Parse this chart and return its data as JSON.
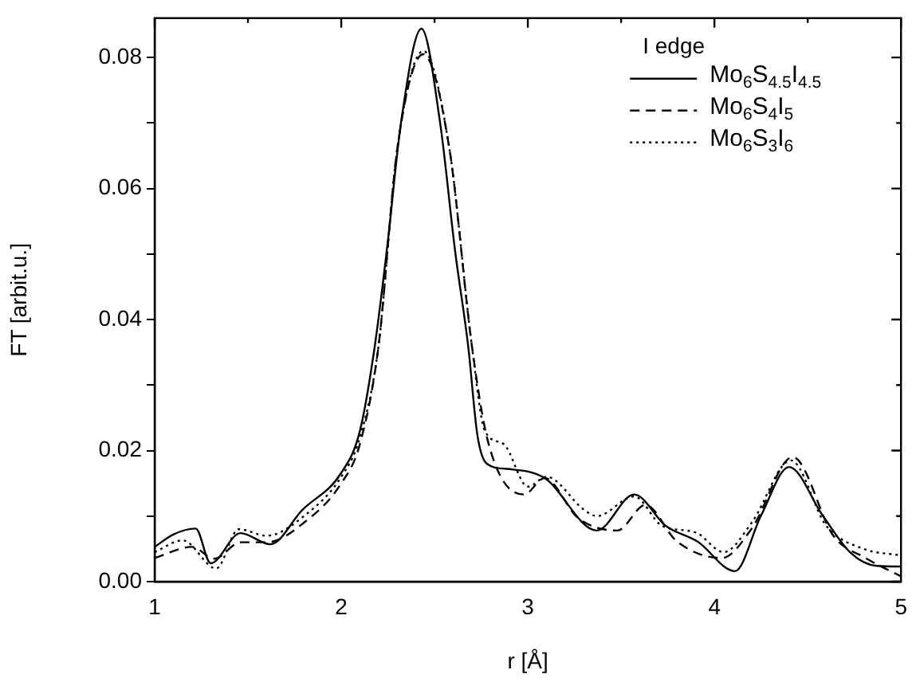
{
  "chart_data": {
    "type": "line",
    "xlabel": "r [Å]",
    "ylabel": "FT [arbit.u.]",
    "legend_title": "I edge",
    "legend": "top right",
    "grid": false,
    "marker": "none",
    "xlim": [
      1,
      5
    ],
    "ylim": [
      0,
      0.086
    ],
    "xticks": [
      1,
      {
        "value": 1.5,
        "label": null
      },
      2,
      {
        "value": 2.5,
        "label": null
      },
      3,
      {
        "value": 3.5,
        "label": null
      },
      4,
      {
        "value": 4.5,
        "label": null
      },
      5
    ],
    "yticks": [
      {
        "value": 0,
        "label": "0.00"
      },
      {
        "value": 0.01,
        "label": null
      },
      {
        "value": 0.02,
        "label": "0.02"
      },
      {
        "value": 0.03,
        "label": null
      },
      {
        "value": 0.04,
        "label": "0.04"
      },
      {
        "value": 0.05,
        "label": null
      },
      {
        "value": 0.06,
        "label": "0.06"
      },
      {
        "value": 0.07,
        "label": null
      },
      {
        "value": 0.08,
        "label": "0.08"
      }
    ],
    "series": [
      {
        "name": "Mo$_{6}$S$_{4.5}$I$_{4.5}$",
        "color": "#000000",
        "line_style": "solid",
        "x": [
          1,
          1.1,
          1.22,
          1.3,
          1.46,
          1.62,
          1.79,
          2.0,
          2.1,
          2.18,
          2.25,
          2.32,
          2.43,
          2.53,
          2.61,
          2.68,
          2.73,
          2.78,
          2.89,
          3.09,
          3.37,
          3.57,
          3.74,
          3.91,
          4.11,
          4.25,
          4.4,
          4.58,
          4.73,
          4.87,
          5
        ],
        "values": [
          0.0053,
          0.0072,
          0.0081,
          0.0028,
          0.0074,
          0.0057,
          0.0109,
          0.0166,
          0.023,
          0.036,
          0.052,
          0.07,
          0.0844,
          0.07,
          0.0505,
          0.036,
          0.0223,
          0.018,
          0.0172,
          0.0158,
          0.0078,
          0.0133,
          0.0085,
          0.0061,
          0.0016,
          0.0101,
          0.0175,
          0.0101,
          0.0044,
          0.0024,
          0.0023
        ]
      },
      {
        "name": "Mo$_{6}$S$_{4}$I$_{5}$",
        "color": "#000000",
        "line_style": "dashed",
        "x": [
          1,
          1.2,
          1.32,
          1.46,
          1.6,
          1.8,
          2.0,
          2.1,
          2.2,
          2.3,
          2.44,
          2.58,
          2.7,
          2.79,
          2.98,
          3.09,
          3.27,
          3.48,
          3.63,
          3.8,
          4.04,
          4.2,
          4.42,
          4.64,
          4.81,
          5
        ],
        "values": [
          0.0036,
          0.0053,
          0.0035,
          0.006,
          0.006,
          0.009,
          0.015,
          0.021,
          0.036,
          0.066,
          0.0805,
          0.066,
          0.036,
          0.021,
          0.0133,
          0.0158,
          0.0097,
          0.0078,
          0.0117,
          0.0061,
          0.0036,
          0.0081,
          0.019,
          0.0069,
          0.0036,
          0.0008
        ]
      },
      {
        "name": "Mo$_{6}$S$_{3}$I$_{6}$",
        "color": "#000000",
        "line_style": "dotted",
        "x": [
          1,
          1.15,
          1.33,
          1.45,
          1.6,
          1.8,
          2.0,
          2.1,
          2.2,
          2.3,
          2.44,
          2.58,
          2.7,
          2.77,
          2.87,
          3.0,
          3.1,
          3.3,
          3.37,
          3.57,
          3.72,
          3.9,
          4.05,
          4.2,
          4.41,
          4.6,
          4.8,
          5
        ],
        "values": [
          0.0045,
          0.0063,
          0.002,
          0.008,
          0.007,
          0.01,
          0.016,
          0.022,
          0.036,
          0.066,
          0.081,
          0.066,
          0.036,
          0.023,
          0.021,
          0.0145,
          0.016,
          0.011,
          0.01,
          0.013,
          0.0085,
          0.0075,
          0.0045,
          0.009,
          0.0185,
          0.0085,
          0.005,
          0.004
        ]
      }
    ]
  }
}
